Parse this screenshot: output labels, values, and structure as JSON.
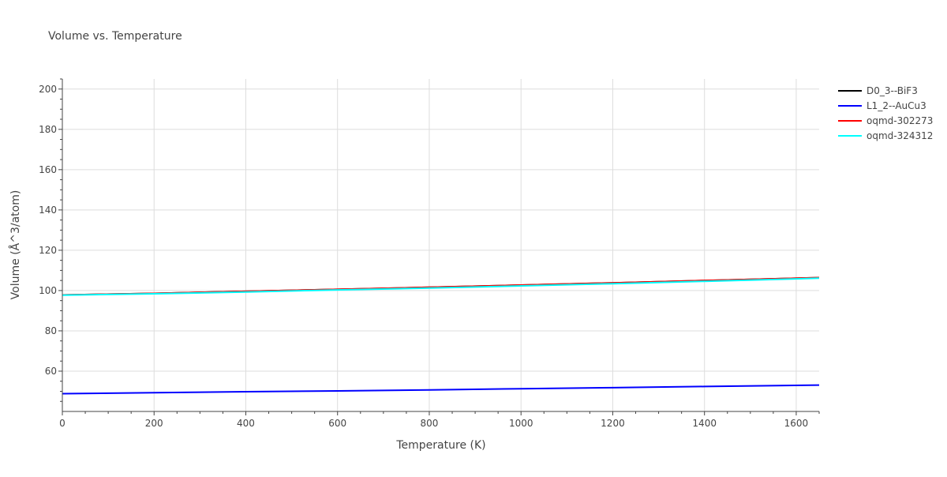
{
  "chart_data": {
    "type": "line",
    "title": "Volume vs. Temperature",
    "xlabel": "Temperature (K)",
    "ylabel": "Volume (Å^3/atom)",
    "xlim": [
      0,
      1650
    ],
    "ylim": [
      40,
      205
    ],
    "xticks": [
      0,
      200,
      400,
      600,
      800,
      1000,
      1200,
      1400,
      1600
    ],
    "yticks": [
      60,
      80,
      100,
      120,
      140,
      160,
      180,
      200
    ],
    "grid": true,
    "legend_position": "right",
    "series": [
      {
        "name": "D0_3--BiF3",
        "color": "#000000",
        "x": [
          0,
          200,
          400,
          600,
          800,
          1000,
          1200,
          1400,
          1650
        ],
        "y": [
          97.8,
          98.6,
          99.6,
          100.6,
          101.6,
          102.7,
          103.8,
          105.0,
          106.4
        ]
      },
      {
        "name": "L1_2--AuCu3",
        "color": "#0000ff",
        "x": [
          0,
          200,
          400,
          600,
          800,
          1000,
          1200,
          1400,
          1650
        ],
        "y": [
          48.8,
          49.3,
          49.8,
          50.2,
          50.7,
          51.3,
          51.8,
          52.4,
          53.1
        ]
      },
      {
        "name": "oqmd-302273",
        "color": "#ff0000",
        "x": [
          0,
          200,
          400,
          600,
          800,
          1000,
          1200,
          1400,
          1650
        ],
        "y": [
          97.8,
          98.6,
          99.6,
          100.6,
          101.6,
          102.7,
          103.8,
          105.0,
          106.4
        ]
      },
      {
        "name": "oqmd-324312",
        "color": "#00ffff",
        "x": [
          0,
          200,
          400,
          600,
          800,
          1000,
          1200,
          1400,
          1650
        ],
        "y": [
          97.7,
          98.4,
          99.3,
          100.3,
          101.2,
          102.3,
          103.4,
          104.6,
          106.1
        ]
      }
    ]
  }
}
